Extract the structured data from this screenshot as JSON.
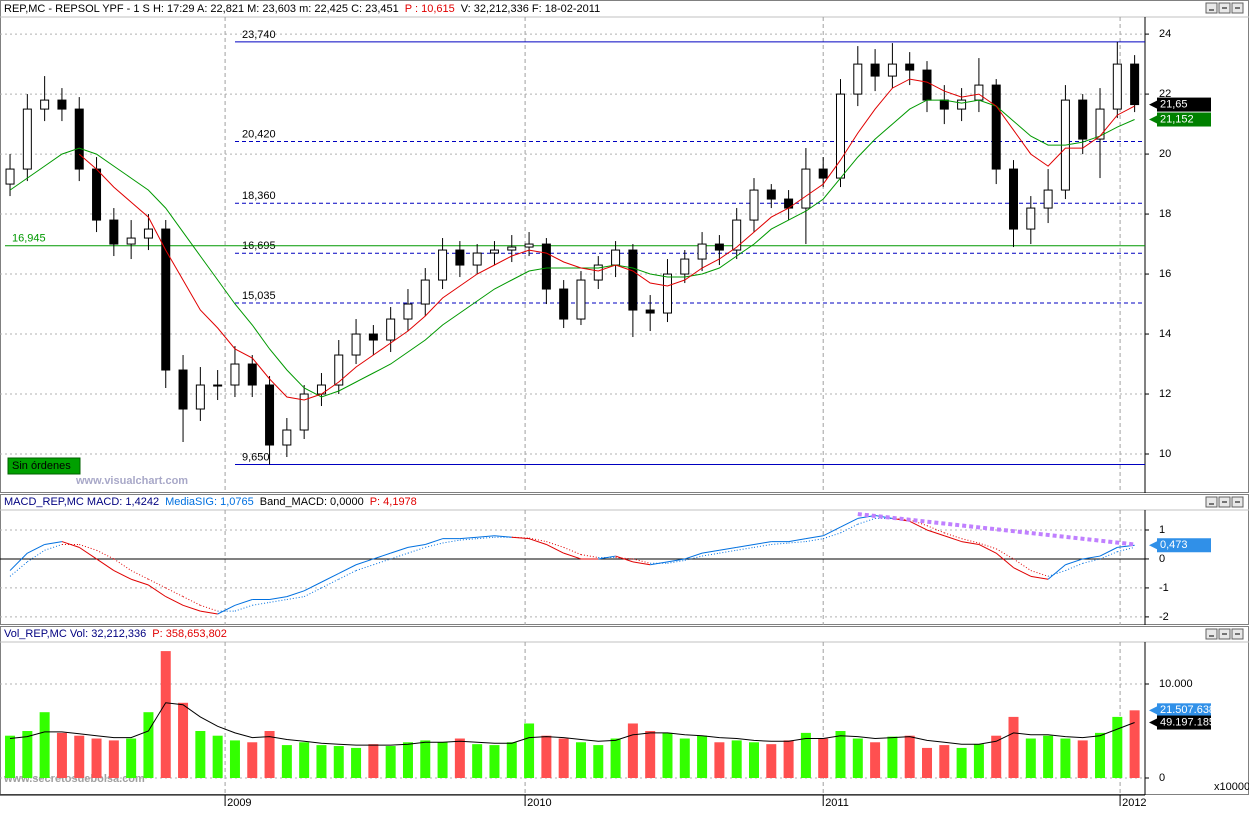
{
  "header": {
    "price": [
      "REP,MC - REPSOL YPF -  1 S H: 17:29 A: 22,821 M: 23,603 m: 22,425 C: 23,451",
      "P : 10,615",
      "V: 32,212,336 F: 18-02-2011"
    ],
    "macd": [
      "MACD_REP,MC MACD: 1,4242",
      "MediaSIG: 1,0765",
      "Band_MACD: 0,0000",
      "P: 4,1978"
    ],
    "volume": [
      "Vol_REP,MC Vol: 32,212,336",
      "P: 358,653,802"
    ]
  },
  "chart_data": [
    {
      "type": "candlestick",
      "open": [
        19,
        19.5,
        21.5,
        21.8,
        21.5,
        19.5,
        17.8,
        17,
        17.2,
        17.5,
        12.8,
        11.5,
        12.3,
        12.3,
        13,
        12.3,
        10.3,
        10.8,
        12,
        12.3,
        13.3,
        14,
        13.8,
        14.5,
        15,
        15.8,
        16.8,
        16.3,
        16.7,
        16.8,
        16.9,
        17,
        15.5,
        14.5,
        15.8,
        16.3,
        16.8,
        14.8,
        14.7,
        16,
        16.5,
        17,
        16.8,
        17.8,
        18.8,
        18.5,
        18.2,
        19.5,
        19.2,
        22,
        23,
        22.6,
        23,
        22.8,
        21.8,
        21.5,
        21.8,
        22.3,
        19.5,
        17.5,
        18.2,
        18.8,
        21.8,
        20.5,
        21.5,
        23
      ],
      "high": [
        20,
        22,
        22.6,
        22.2,
        21.9,
        19.9,
        18.2,
        17.8,
        18,
        17.8,
        13.3,
        12.9,
        12.8,
        13.6,
        13.3,
        12.6,
        11.2,
        12.3,
        12.7,
        13.8,
        14.5,
        14.3,
        14.9,
        15.5,
        16.2,
        17.2,
        17.1,
        17,
        17.1,
        17.3,
        17.4,
        17.2,
        15.8,
        16.1,
        16.6,
        17.1,
        17,
        15.3,
        16.5,
        16.8,
        17.4,
        17.3,
        18.2,
        19.2,
        19,
        18.8,
        20.2,
        19.9,
        22.5,
        23.6,
        23.5,
        23.7,
        23.4,
        23.1,
        22.3,
        22.2,
        23.2,
        22.5,
        19.8,
        18.6,
        19.5,
        22.3,
        22,
        22.2,
        23.74,
        23.3
      ],
      "low": [
        18.6,
        19.1,
        21.1,
        21.1,
        19.1,
        17.4,
        16.6,
        16.5,
        16.8,
        12.2,
        10.4,
        11.1,
        11.8,
        11.9,
        11.9,
        9.65,
        9.9,
        10.5,
        11.6,
        12,
        13,
        13.3,
        13.4,
        14.1,
        14.6,
        15.5,
        15.9,
        16,
        16.3,
        16.4,
        16.6,
        15,
        14.2,
        14.3,
        15.5,
        15.9,
        13.9,
        14.1,
        14.4,
        15.7,
        16.1,
        16.3,
        16.5,
        17.4,
        18.2,
        17.8,
        17,
        18.9,
        18.9,
        21.6,
        22.1,
        22.2,
        22.3,
        21.4,
        21,
        21.1,
        21.4,
        19,
        16.9,
        17,
        17.7,
        18.5,
        20,
        19.2,
        21.2,
        21.4
      ],
      "close": [
        19.5,
        21.5,
        21.8,
        21.5,
        19.5,
        17.8,
        17,
        17.2,
        17.5,
        12.8,
        11.5,
        12.3,
        12.3,
        13,
        12.3,
        10.3,
        10.8,
        12,
        12.3,
        13.3,
        14,
        13.8,
        14.5,
        15,
        15.8,
        16.8,
        16.3,
        16.7,
        16.8,
        16.9,
        17,
        15.5,
        14.5,
        15.8,
        16.3,
        16.8,
        14.8,
        14.7,
        16,
        16.5,
        17,
        16.8,
        17.8,
        18.8,
        18.5,
        18.2,
        19.5,
        19.2,
        22,
        23,
        22.6,
        23,
        22.8,
        21.8,
        21.5,
        21.8,
        22.3,
        19.5,
        17.5,
        18.2,
        18.8,
        21.8,
        20.5,
        21.5,
        23,
        21.65
      ],
      "ma_short": {
        "color": "#e00000",
        "values": [
          null,
          null,
          null,
          null,
          20,
          19.5,
          18.9,
          18.4,
          17.9,
          16.8,
          15.8,
          14.8,
          14.2,
          13.5,
          13.2,
          12.5,
          11.9,
          11.8,
          12,
          12.4,
          12.9,
          13.3,
          13.7,
          14.1,
          14.6,
          15.2,
          15.6,
          16,
          16.3,
          16.6,
          16.8,
          16.7,
          16.4,
          16.2,
          16.1,
          16.3,
          16.1,
          15.7,
          15.6,
          15.8,
          16.2,
          16.5,
          16.9,
          17.4,
          17.9,
          18.2,
          18.6,
          19,
          19.8,
          20.7,
          21.5,
          22.2,
          22.5,
          22.4,
          22.1,
          21.9,
          22,
          21.6,
          20.8,
          20,
          19.6,
          20.2,
          20.2,
          20.6,
          21.3,
          21.6
        ]
      },
      "ma_long": {
        "color": "#009900",
        "values": [
          18.8,
          19.2,
          19.6,
          20,
          20.2,
          20,
          19.6,
          19.2,
          18.8,
          18.2,
          17.4,
          16.6,
          15.8,
          15,
          14.3,
          13.5,
          12.8,
          12.2,
          11.9,
          12.1,
          12.4,
          12.7,
          13,
          13.4,
          13.8,
          14.3,
          14.7,
          15.1,
          15.5,
          15.8,
          16.1,
          16.2,
          16.2,
          16.2,
          16.2,
          16.3,
          16.2,
          16,
          15.9,
          15.9,
          16,
          16.2,
          16.6,
          17,
          17.5,
          17.8,
          18.1,
          18.5,
          19.2,
          19.9,
          20.5,
          21,
          21.5,
          21.8,
          21.8,
          21.7,
          21.8,
          21.6,
          21.1,
          20.6,
          20.3,
          20.3,
          20.4,
          20.6,
          20.9,
          21.152
        ]
      },
      "ylim": [
        8.7,
        24.57
      ],
      "yticks": [
        24,
        22,
        20,
        18,
        16,
        14,
        12,
        10
      ],
      "xlim": [
        -0.58,
        65.6
      ],
      "xticks": [
        {
          "value": 12.43,
          "label": "2009"
        },
        {
          "value": 29.77,
          "label": "2010"
        },
        {
          "value": 47.0,
          "label": "2011"
        },
        {
          "value": 64.16,
          "label": "2012"
        }
      ],
      "levels": [
        {
          "value": 23.74,
          "label": "23,740",
          "color": "#0000c0",
          "dash": false
        },
        {
          "value": 20.42,
          "label": "20,420",
          "color": "#0000c0",
          "dash": true
        },
        {
          "value": 18.36,
          "label": "18,360",
          "color": "#0000c0",
          "dash": true
        },
        {
          "value": 16.695,
          "label": "16,695",
          "color": "#0000c0",
          "dash": true
        },
        {
          "value": 15.035,
          "label": "15,035",
          "color": "#0000c0",
          "dash": true
        },
        {
          "value": 9.65,
          "label": "9,650",
          "color": "#0000c0",
          "dash": false
        },
        {
          "value": 16.945,
          "label": "16,945",
          "color": "#009900",
          "dash": false
        }
      ],
      "readouts": [
        "21,65",
        "21,152"
      ],
      "annotations": [
        "Sin órdenes",
        "www.visualchart.com",
        "www.secretosdebolsa.com"
      ]
    },
    {
      "type": "macd",
      "series": [
        {
          "color": "#0070e0",
          "values": [
            -0.4,
            0.2,
            0.5,
            0.6,
            0.4,
            0,
            -0.4,
            -0.7,
            -0.9,
            -1.3,
            -1.6,
            -1.8,
            -1.9,
            -1.6,
            -1.4,
            -1.4,
            -1.3,
            -1.1,
            -0.8,
            -0.5,
            -0.2,
            0,
            0.2,
            0.4,
            0.5,
            0.7,
            0.7,
            0.75,
            0.8,
            0.75,
            0.7,
            0.5,
            0.2,
            0,
            0,
            0.1,
            -0.1,
            -0.2,
            -0.1,
            0,
            0.2,
            0.3,
            0.4,
            0.5,
            0.6,
            0.6,
            0.7,
            0.8,
            1.1,
            1.4,
            1.5,
            1.4,
            1.3,
            1,
            0.8,
            0.6,
            0.5,
            0.2,
            -0.3,
            -0.6,
            -0.7,
            -0.2,
            0,
            0.1,
            0.4,
            0.473
          ]
        },
        {
          "color": "#e00000",
          "values": [
            -0.6,
            -0.1,
            0.3,
            0.5,
            0.5,
            0.3,
            0,
            -0.4,
            -0.7,
            -1,
            -1.3,
            -1.6,
            -1.8,
            -1.8,
            -1.6,
            -1.5,
            -1.4,
            -1.3,
            -1,
            -0.7,
            -0.4,
            -0.2,
            0,
            0.2,
            0.4,
            0.55,
            0.65,
            0.7,
            0.75,
            0.75,
            0.72,
            0.6,
            0.4,
            0.15,
            0.05,
            0.05,
            0,
            -0.15,
            -0.15,
            -0.05,
            0.1,
            0.2,
            0.3,
            0.4,
            0.5,
            0.55,
            0.6,
            0.7,
            0.9,
            1.2,
            1.4,
            1.4,
            1.35,
            1.15,
            0.9,
            0.7,
            0.55,
            0.35,
            0,
            -0.4,
            -0.6,
            -0.4,
            -0.15,
            0,
            0.25,
            0.4
          ]
        }
      ],
      "trendline": {
        "color": "#c080ff",
        "values": [
          1.55,
          0.5
        ]
      },
      "ylim": [
        -2.28,
        1.69
      ],
      "yticks": [
        1,
        0,
        -1,
        -2
      ],
      "readouts": [
        "0,473"
      ]
    },
    {
      "type": "volume",
      "values": [
        4500,
        5000,
        7000,
        4800,
        4500,
        4200,
        4000,
        4200,
        7000,
        13500,
        8000,
        5000,
        4500,
        4000,
        3800,
        5000,
        3500,
        3800,
        3500,
        3400,
        3200,
        3600,
        3400,
        3800,
        4000,
        3800,
        4200,
        3600,
        3500,
        3800,
        5800,
        4500,
        4200,
        3800,
        3500,
        4200,
        5800,
        5000,
        4800,
        4200,
        4500,
        3800,
        4000,
        3800,
        3600,
        4000,
        4800,
        4200,
        5000,
        4200,
        3800,
        4400,
        4500,
        3200,
        3500,
        3200,
        3600,
        4500,
        6500,
        4200,
        4500,
        4200,
        4000,
        4800,
        6500,
        7200
      ],
      "ma": [
        4200,
        4400,
        4900,
        4900,
        4700,
        4500,
        4300,
        4300,
        5000,
        8000,
        7800,
        6500,
        5500,
        4800,
        4300,
        4400,
        4100,
        3900,
        3700,
        3600,
        3500,
        3500,
        3500,
        3600,
        3800,
        3800,
        3900,
        3800,
        3700,
        3700,
        4300,
        4400,
        4300,
        4100,
        3900,
        4000,
        4600,
        4800,
        4800,
        4600,
        4500,
        4300,
        4200,
        4000,
        3900,
        3900,
        4200,
        4200,
        4500,
        4400,
        4200,
        4300,
        4400,
        4000,
        3800,
        3600,
        3600,
        3900,
        4800,
        4600,
        4600,
        4400,
        4300,
        4500,
        5200,
        5900
      ],
      "colors": {
        "up": "#33ff00",
        "down": "#ff5050",
        "ma": "#000000"
      },
      "ylim": [
        -1809,
        14468
      ],
      "yticks": [
        0,
        {
          "value": 10000,
          "label": "10.000"
        }
      ],
      "unit_label": "x10000",
      "readouts": [
        "21.507.638",
        "49.197.185"
      ]
    }
  ]
}
